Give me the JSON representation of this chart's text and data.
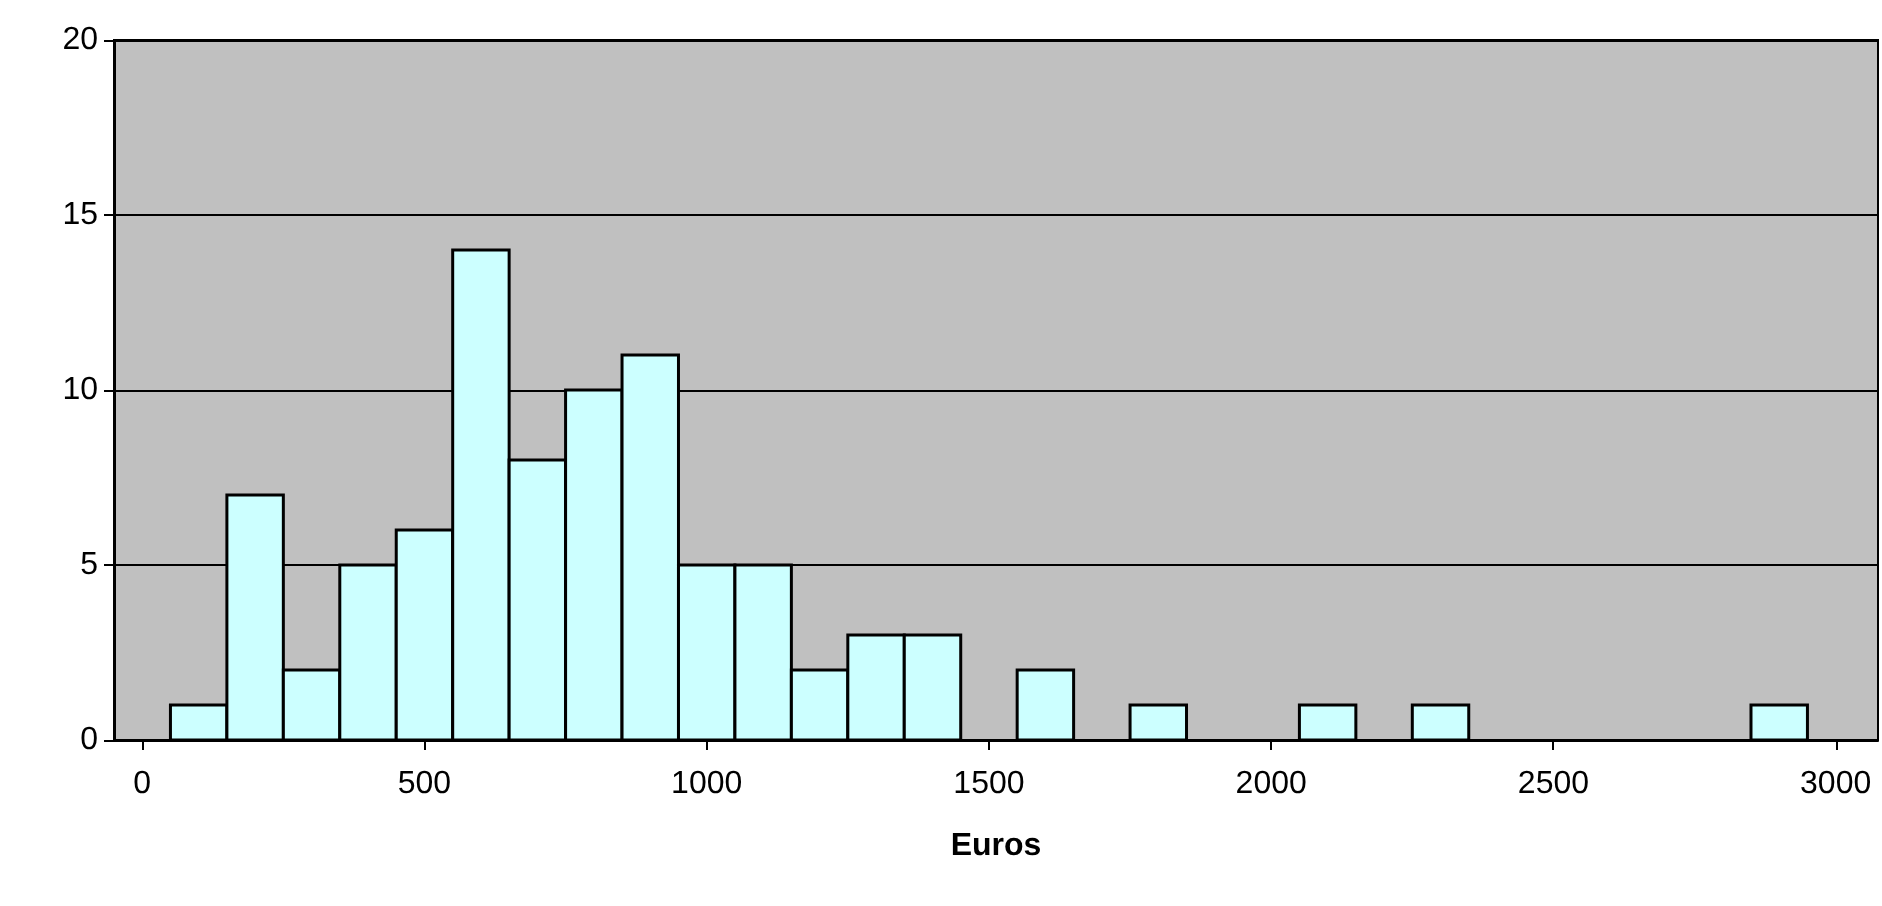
{
  "chart_data": {
    "type": "histogram",
    "xlabel": "Euros",
    "bins": [
      50,
      150,
      250,
      350,
      450,
      550,
      650,
      750,
      850,
      950,
      1050,
      1150,
      1250,
      1350,
      1450,
      1550,
      1650,
      1750,
      1850,
      1950,
      2050,
      2150,
      2250,
      2350,
      2450,
      2550,
      2650,
      2750,
      2850,
      2950
    ],
    "values": [
      1,
      7,
      2,
      5,
      6,
      14,
      8,
      10,
      11,
      5,
      5,
      2,
      3,
      3,
      0,
      2,
      0,
      1,
      0,
      0,
      1,
      0,
      1,
      0,
      0,
      0,
      0,
      0,
      1
    ],
    "color": "#ccffff",
    "xlim": [
      -50,
      3075
    ],
    "xticks": [
      0,
      500,
      1000,
      1500,
      2000,
      2500,
      3000
    ],
    "ylim": [
      0,
      20
    ],
    "yticks": [
      0,
      5,
      10,
      15,
      20
    ],
    "grid": "y"
  }
}
